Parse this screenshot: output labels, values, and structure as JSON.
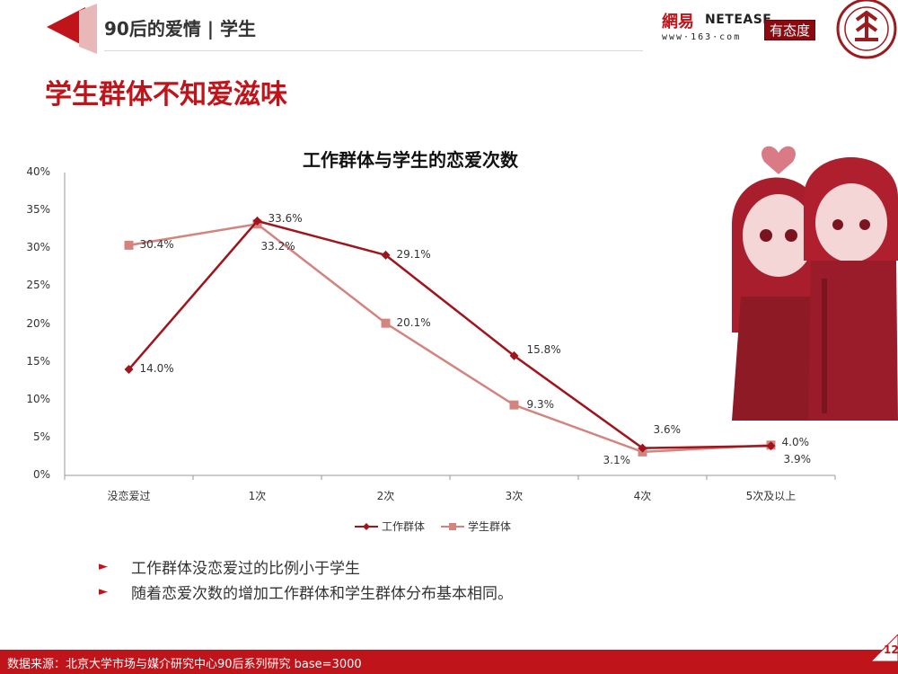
{
  "header": {
    "title": "90后的爱情 | 学生",
    "brand_163": "網易",
    "brand_netease": "NETEASE",
    "brand_url": "www·163·com",
    "brand_ytd": "有态度"
  },
  "subtitle": "学生群体不知爱滋味",
  "chart_data": {
    "type": "line",
    "title": "工作群体与学生的恋爱次数",
    "categories": [
      "没恋爱过",
      "1次",
      "2次",
      "3次",
      "4次",
      "5次及以上"
    ],
    "yticks": [
      "40%",
      "35%",
      "30%",
      "25%",
      "20%",
      "15%",
      "10%",
      "5%",
      "0%"
    ],
    "ylim": [
      0,
      40
    ],
    "series": [
      {
        "name": "工作群体",
        "values": [
          14.0,
          33.6,
          29.1,
          15.8,
          3.6,
          3.9
        ],
        "labels": [
          "14.0%",
          "33.6%",
          "29.1%",
          "15.8%",
          "3.6%",
          "3.9%"
        ],
        "color": "#a0141b",
        "marker": "diamond"
      },
      {
        "name": "学生群体",
        "values": [
          30.4,
          33.2,
          20.1,
          9.3,
          3.1,
          4.0
        ],
        "labels": [
          "30.4%",
          "33.2%",
          "20.1%",
          "9.3%",
          "3.1%",
          "4.0%"
        ],
        "color": "#d4847f",
        "marker": "square"
      }
    ],
    "legend": "bottom"
  },
  "bullets": [
    "工作群体没恋爱过的比例小于学生",
    "随着恋爱次数的增加工作群体和学生群体分布基本相同。"
  ],
  "footer": {
    "source": "数据来源：北京大学市场与媒介研究中心90后系列研究 base=3000",
    "page": "12"
  },
  "colors": {
    "accent": "#c0141b",
    "series1": "#a0141b",
    "series2": "#d4847f"
  }
}
